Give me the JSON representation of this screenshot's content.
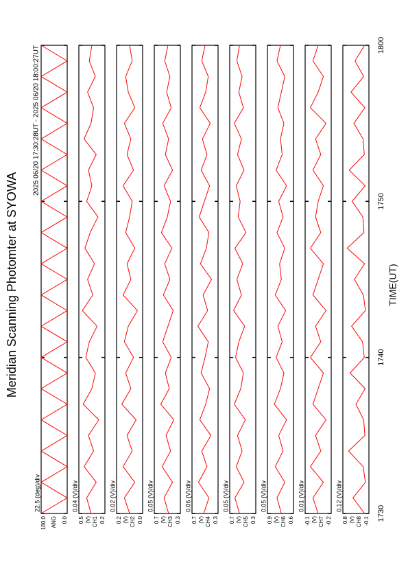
{
  "chart_data": {
    "type": "line",
    "title": "Meridian Scanning Photomter at SYOWA",
    "subtitle": "2025 06/20 17:30:28UT - 2025 06/20 18:00:27UT",
    "xlabel": "TIME(UT)",
    "x": [
      0,
      1,
      2,
      3,
      4,
      5,
      6,
      7,
      8,
      9,
      10,
      11,
      12,
      13,
      14,
      15,
      16,
      17,
      18,
      19,
      20,
      21,
      22,
      23,
      24,
      25,
      26,
      27,
      28,
      29,
      30
    ],
    "xlim": [
      0,
      30
    ],
    "xticks": [
      {
        "value": 0,
        "label": "1730"
      },
      {
        "value": 10,
        "label": "1740"
      },
      {
        "value": 20,
        "label": "1750"
      },
      {
        "value": 30,
        "label": "1800"
      }
    ],
    "panels": [
      {
        "name": "ANG",
        "scale": "22.5 (deg)/div",
        "ylim": [
          0,
          180
        ],
        "yticks": [
          {
            "value": 0,
            "label": "0.0"
          },
          {
            "value": 180,
            "label": "180.0"
          }
        ],
        "series": [
          {
            "color": "#ff0000",
            "values": [
              180,
              0,
              180,
              0,
              180,
              0,
              180,
              0,
              180,
              0,
              180,
              0,
              180,
              0,
              180,
              0,
              180,
              0,
              180,
              0,
              180,
              0,
              180,
              0,
              180,
              0,
              180,
              0,
              180,
              0,
              180
            ]
          }
        ]
      },
      {
        "name": "CH1",
        "unit": "(V)",
        "scale": "0.04 (V)/div",
        "ylim": [
          0.2,
          0.5
        ],
        "yticks": [
          0.2,
          0.5
        ],
        "series": [
          {
            "color": "#ff0000",
            "values": [
              0.36,
              0.41,
              0.3,
              0.44,
              0.33,
              0.39,
              0.27,
              0.45,
              0.35,
              0.31,
              0.42,
              0.38,
              0.29,
              0.46,
              0.34,
              0.4,
              0.32,
              0.43,
              0.37,
              0.28,
              0.41,
              0.35,
              0.39,
              0.3,
              0.44,
              0.36,
              0.33,
              0.4,
              0.31,
              0.38,
              0.35
            ]
          }
        ]
      },
      {
        "name": "CH2",
        "unit": "(V)",
        "scale": "0.02 (V)/div",
        "ylim": [
          0,
          0.2
        ],
        "yticks": [
          {
            "value": 0,
            "label": "0.0"
          },
          0.2
        ],
        "series": [
          {
            "color": "#ff0000",
            "values": [
              0.1,
              0.14,
              0.06,
              0.15,
              0.08,
              0.12,
              0.05,
              0.16,
              0.09,
              0.13,
              0.07,
              0.14,
              0.11,
              0.04,
              0.15,
              0.09,
              0.12,
              0.06,
              0.13,
              0.1,
              0.08,
              0.15,
              0.07,
              0.12,
              0.09,
              0.14,
              0.06,
              0.11,
              0.13,
              0.08,
              0.1
            ]
          }
        ]
      },
      {
        "name": "CH3",
        "unit": "(V)",
        "scale": "0.05 (V)/div",
        "ylim": [
          0.3,
          0.7
        ],
        "yticks": [
          0.3,
          0.7
        ],
        "series": [
          {
            "color": "#ff0000",
            "values": [
              0.48,
              0.55,
              0.42,
              0.58,
              0.45,
              0.52,
              0.4,
              0.6,
              0.47,
              0.53,
              0.44,
              0.57,
              0.49,
              0.41,
              0.56,
              0.46,
              0.54,
              0.43,
              0.59,
              0.5,
              0.45,
              0.55,
              0.42,
              0.53,
              0.48,
              0.57,
              0.44,
              0.51,
              0.46,
              0.54,
              0.49
            ]
          }
        ]
      },
      {
        "name": "CH4",
        "unit": "(V)",
        "scale": "0.06 (V)/div",
        "ylim": [
          0.3,
          0.7
        ],
        "yticks": [
          0.3,
          0.7
        ],
        "series": [
          {
            "color": "#ff0000",
            "values": [
              0.52,
              0.44,
              0.6,
              0.47,
              0.55,
              0.41,
              0.58,
              0.49,
              0.43,
              0.56,
              0.5,
              0.45,
              0.61,
              0.46,
              0.53,
              0.4,
              0.57,
              0.48,
              0.44,
              0.59,
              0.51,
              0.43,
              0.56,
              0.47,
              0.54,
              0.42,
              0.58,
              0.49,
              0.45,
              0.55,
              0.5
            ]
          }
        ]
      },
      {
        "name": "CH5",
        "unit": "(V)",
        "scale": "0.05 (V)/div",
        "ylim": [
          0.3,
          0.7
        ],
        "yticks": [
          0.3,
          0.7
        ],
        "series": [
          {
            "color": "#ff0000",
            "values": [
              0.55,
              0.62,
              0.48,
              0.6,
              0.51,
              0.58,
              0.46,
              0.63,
              0.53,
              0.49,
              0.61,
              0.56,
              0.47,
              0.64,
              0.52,
              0.59,
              0.5,
              0.62,
              0.45,
              0.57,
              0.54,
              0.6,
              0.48,
              0.58,
              0.52,
              0.63,
              0.49,
              0.56,
              0.51,
              0.59,
              0.55
            ]
          }
        ]
      },
      {
        "name": "CH6",
        "unit": "(V)",
        "scale": "0.05 (V)/div",
        "ylim": [
          0.6,
          0.9
        ],
        "yticks": [
          0.6,
          0.9
        ],
        "series": [
          {
            "color": "#ff0000",
            "values": [
              0.74,
              0.79,
              0.7,
              0.81,
              0.72,
              0.77,
              0.68,
              0.82,
              0.75,
              0.71,
              0.8,
              0.73,
              0.78,
              0.69,
              0.81,
              0.74,
              0.76,
              0.7,
              0.79,
              0.72,
              0.77,
              0.68,
              0.8,
              0.73,
              0.75,
              0.71,
              0.78,
              0.74,
              0.7,
              0.79,
              0.75
            ]
          }
        ]
      },
      {
        "name": "CH7",
        "unit": "(V)",
        "scale": "0.01 (V)/div",
        "ylim": [
          -0.2,
          -0.1
        ],
        "yticks": [
          -0.2,
          -0.1
        ],
        "series": [
          {
            "color": "#ff0000",
            "values": [
              -0.15,
              -0.13,
              -0.17,
              -0.12,
              -0.16,
              -0.14,
              -0.18,
              -0.13,
              -0.15,
              -0.17,
              -0.12,
              -0.16,
              -0.14,
              -0.18,
              -0.13,
              -0.15,
              -0.17,
              -0.12,
              -0.16,
              -0.14,
              -0.15,
              -0.17,
              -0.13,
              -0.16,
              -0.14,
              -0.18,
              -0.12,
              -0.15,
              -0.17,
              -0.13,
              -0.15
            ]
          }
        ]
      },
      {
        "name": "CH8",
        "unit": "(V)",
        "scale": "0.12 (V)/div",
        "ylim": [
          -0.1,
          0.8
        ],
        "yticks": [
          -0.1,
          0.8
        ],
        "series": [
          {
            "color": "#ff0000",
            "values": [
              0.05,
              0.45,
              0.02,
              0.1,
              0.6,
              0.04,
              0.08,
              0.35,
              0.03,
              0.55,
              0.06,
              0.12,
              0.5,
              0.02,
              0.09,
              0.4,
              0.05,
              0.65,
              0.07,
              0.11,
              0.48,
              0.03,
              0.58,
              0.06,
              0.1,
              0.42,
              0.04,
              0.52,
              0.08,
              0.38,
              0.05
            ]
          }
        ]
      }
    ]
  }
}
